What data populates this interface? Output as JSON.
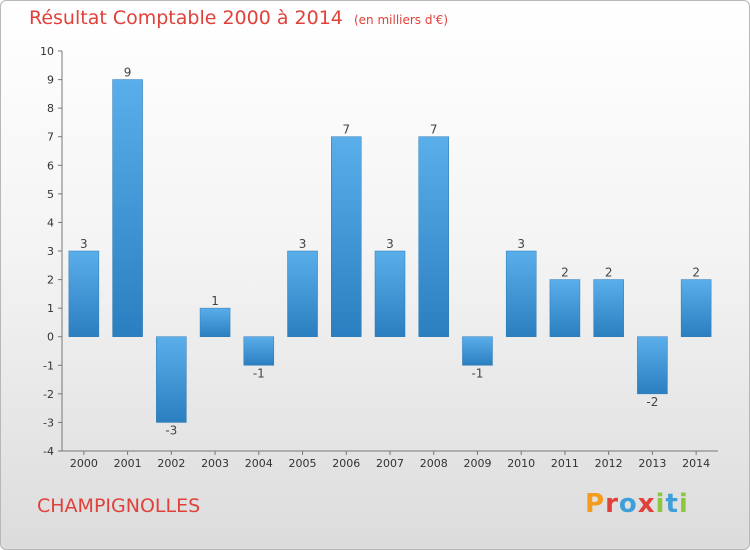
{
  "header": {
    "title": "Résultat Comptable 2000 à 2014",
    "subtitle": "(en milliers d'€)"
  },
  "footer": {
    "commune": "CHAMPIGNOLLES",
    "logo_letters": [
      "P",
      "r",
      "o",
      "x",
      "i",
      "t",
      "i"
    ]
  },
  "colors": {
    "accent": "#e0413a",
    "bar_light": "#5aaeea",
    "bar_dark": "#2b7fc0",
    "logo": [
      "#f39c1f",
      "#e0413a",
      "#3f9fd8",
      "#e0413a",
      "#8dc63f",
      "#3f9fd8",
      "#8dc63f"
    ]
  },
  "chart_data": {
    "type": "bar",
    "title": "Résultat Comptable 2000 à 2014",
    "xlabel": "",
    "ylabel": "(en milliers d'€)",
    "categories": [
      "2000",
      "2001",
      "2002",
      "2003",
      "2004",
      "2005",
      "2006",
      "2007",
      "2008",
      "2009",
      "2010",
      "2011",
      "2012",
      "2013",
      "2014"
    ],
    "values": [
      3,
      9,
      -3,
      1,
      -1,
      3,
      7,
      3,
      7,
      -1,
      3,
      2,
      2,
      -2,
      2
    ],
    "ylim": [
      -4,
      10
    ],
    "yticks": [
      -4,
      -3,
      -2,
      -1,
      0,
      1,
      2,
      3,
      4,
      5,
      6,
      7,
      8,
      9,
      10
    ],
    "grid": false,
    "data_labels": true
  }
}
